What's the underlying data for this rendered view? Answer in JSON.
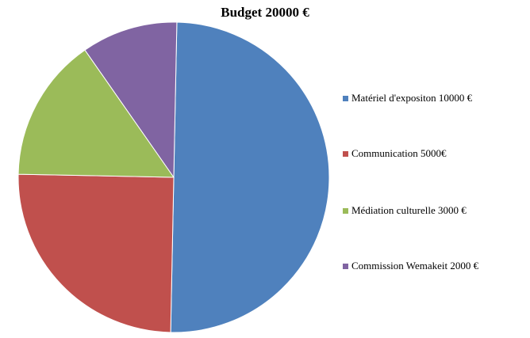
{
  "chart_data": {
    "type": "pie",
    "title": "Budget 20000 €",
    "categories": [
      "Matériel d'expositon 10000 €",
      "Communication 5000€",
      "Médiation culturelle 3000 €",
      "Commission Wemakeit 2000 €"
    ],
    "values": [
      10000,
      5000,
      3000,
      2000
    ],
    "colors": [
      "#4f81bd",
      "#c0504d",
      "#9bbb59",
      "#8064a2"
    ],
    "legend_position": "right"
  }
}
